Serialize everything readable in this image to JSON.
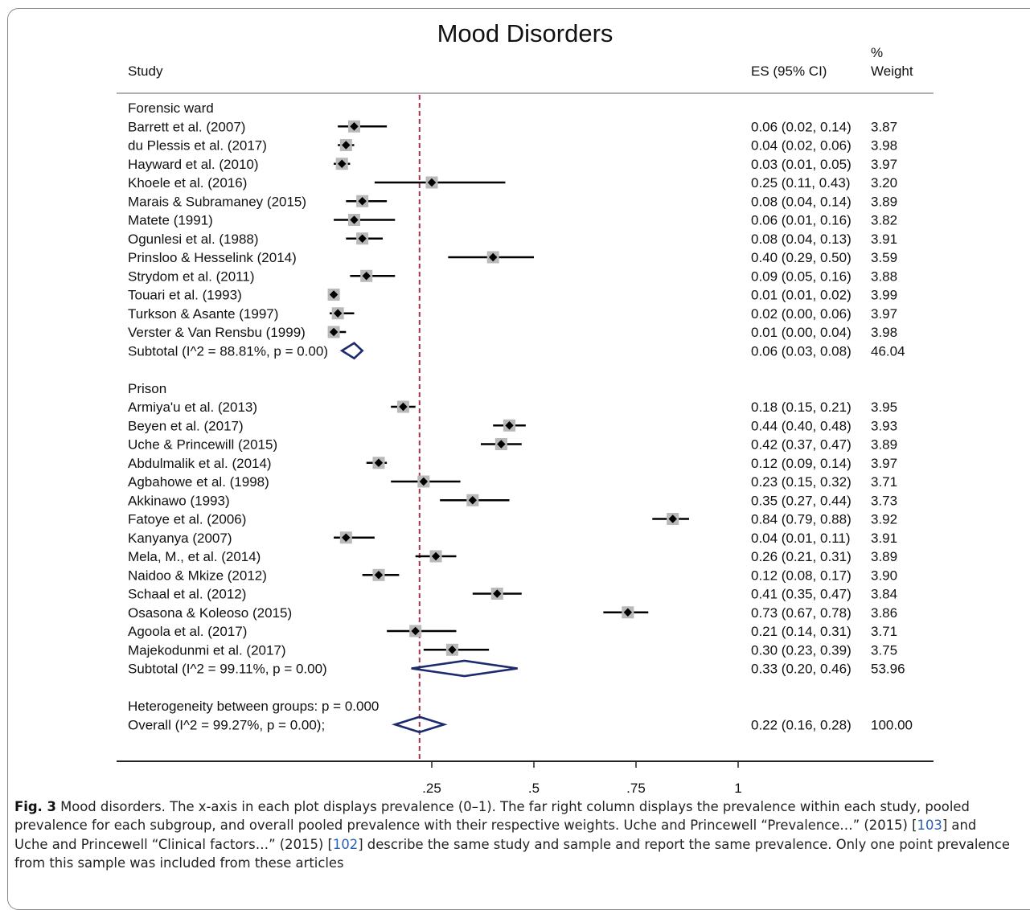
{
  "chart_data": {
    "type": "forest",
    "title": "Mood Disorders",
    "columns": {
      "study": "Study",
      "es": "ES (95% CI)",
      "weight_line1": "%",
      "weight_line2": "Weight"
    },
    "xlim": [
      0,
      1
    ],
    "reference_line": 0.22,
    "xticks": [
      {
        "value": 0.25,
        "label": ".25"
      },
      {
        "value": 0.5,
        "label": ".5"
      },
      {
        "value": 0.75,
        "label": ".75"
      },
      {
        "value": 1,
        "label": "1"
      }
    ],
    "rows": [
      {
        "kind": "header",
        "label": "Forensic ward"
      },
      {
        "kind": "study",
        "label": "Barrett et al.  (2007)",
        "es": 0.06,
        "lo": 0.02,
        "hi": 0.14,
        "es_text": "0.06 (0.02, 0.14)",
        "weight": "3.87"
      },
      {
        "kind": "study",
        "label": "du Plessis et al.  (2017)",
        "es": 0.04,
        "lo": 0.02,
        "hi": 0.06,
        "es_text": "0.04 (0.02, 0.06)",
        "weight": "3.98"
      },
      {
        "kind": "study",
        "label": "Hayward et al.  (2010)",
        "es": 0.03,
        "lo": 0.01,
        "hi": 0.05,
        "es_text": "0.03 (0.01, 0.05)",
        "weight": "3.97"
      },
      {
        "kind": "study",
        "label": "Khoele et al.  (2016)",
        "es": 0.25,
        "lo": 0.11,
        "hi": 0.43,
        "es_text": "0.25 (0.11, 0.43)",
        "weight": "3.20"
      },
      {
        "kind": "study",
        "label": "Marais & Subramaney  (2015)",
        "es": 0.08,
        "lo": 0.04,
        "hi": 0.14,
        "es_text": "0.08 (0.04, 0.14)",
        "weight": "3.89"
      },
      {
        "kind": "study",
        "label": "Matete  (1991)",
        "es": 0.06,
        "lo": 0.01,
        "hi": 0.16,
        "es_text": "0.06 (0.01, 0.16)",
        "weight": "3.82"
      },
      {
        "kind": "study",
        "label": "Ogunlesi et al.  (1988)",
        "es": 0.08,
        "lo": 0.04,
        "hi": 0.13,
        "es_text": "0.08 (0.04, 0.13)",
        "weight": "3.91"
      },
      {
        "kind": "study",
        "label": "Prinsloo & Hesselink  (2014)",
        "es": 0.4,
        "lo": 0.29,
        "hi": 0.5,
        "es_text": "0.40 (0.29, 0.50)",
        "weight": "3.59"
      },
      {
        "kind": "study",
        "label": "Strydom et al.  (2011)",
        "es": 0.09,
        "lo": 0.05,
        "hi": 0.16,
        "es_text": "0.09 (0.05, 0.16)",
        "weight": "3.88"
      },
      {
        "kind": "study",
        "label": "Touari et al.  (1993)",
        "es": 0.01,
        "lo": 0.01,
        "hi": 0.02,
        "es_text": "0.01 (0.01, 0.02)",
        "weight": "3.99"
      },
      {
        "kind": "study",
        "label": "Turkson & Asante  (1997)",
        "es": 0.02,
        "lo": 0.0,
        "hi": 0.06,
        "es_text": "0.02 (0.00, 0.06)",
        "weight": "3.97"
      },
      {
        "kind": "study",
        "label": "Verster & Van Rensbu  (1999)",
        "es": 0.01,
        "lo": 0.0,
        "hi": 0.04,
        "es_text": "0.01 (0.00, 0.04)",
        "weight": "3.98"
      },
      {
        "kind": "subtotal",
        "label": "Subtotal  (I^2 = 88.81%, p = 0.00)",
        "es": 0.06,
        "lo": 0.03,
        "hi": 0.08,
        "es_text": "0.06 (0.03, 0.08)",
        "weight": "46.04"
      },
      {
        "kind": "blank"
      },
      {
        "kind": "header",
        "label": "Prison"
      },
      {
        "kind": "study",
        "label": "Armiya'u et al.  (2013)",
        "es": 0.18,
        "lo": 0.15,
        "hi": 0.21,
        "es_text": "0.18 (0.15, 0.21)",
        "weight": "3.95"
      },
      {
        "kind": "study",
        "label": "Beyen et al.  (2017)",
        "es": 0.44,
        "lo": 0.4,
        "hi": 0.48,
        "es_text": "0.44 (0.40, 0.48)",
        "weight": "3.93"
      },
      {
        "kind": "study",
        "label": "Uche & Princewill  (2015)",
        "es": 0.42,
        "lo": 0.37,
        "hi": 0.47,
        "es_text": "0.42 (0.37, 0.47)",
        "weight": "3.89"
      },
      {
        "kind": "study",
        "label": "Abdulmalik et al.  (2014)",
        "es": 0.12,
        "lo": 0.09,
        "hi": 0.14,
        "es_text": "0.12 (0.09, 0.14)",
        "weight": "3.97"
      },
      {
        "kind": "study",
        "label": "Agbahowe et al.  (1998)",
        "es": 0.23,
        "lo": 0.15,
        "hi": 0.32,
        "es_text": "0.23 (0.15, 0.32)",
        "weight": "3.71"
      },
      {
        "kind": "study",
        "label": "Akkinawo  (1993)",
        "es": 0.35,
        "lo": 0.27,
        "hi": 0.44,
        "es_text": "0.35 (0.27, 0.44)",
        "weight": "3.73"
      },
      {
        "kind": "study",
        "label": "Fatoye et al.  (2006)",
        "es": 0.84,
        "lo": 0.79,
        "hi": 0.88,
        "es_text": "0.84 (0.79, 0.88)",
        "weight": "3.92"
      },
      {
        "kind": "study",
        "label": "Kanyanya  (2007)",
        "es": 0.04,
        "lo": 0.01,
        "hi": 0.11,
        "es_text": "0.04 (0.01, 0.11)",
        "weight": "3.91"
      },
      {
        "kind": "study",
        "label": "Mela, M., et al.  (2014)",
        "es": 0.26,
        "lo": 0.21,
        "hi": 0.31,
        "es_text": "0.26 (0.21, 0.31)",
        "weight": "3.89"
      },
      {
        "kind": "study",
        "label": "Naidoo & Mkize  (2012)",
        "es": 0.12,
        "lo": 0.08,
        "hi": 0.17,
        "es_text": "0.12 (0.08, 0.17)",
        "weight": "3.90"
      },
      {
        "kind": "study",
        "label": "Schaal et al.  (2012)",
        "es": 0.41,
        "lo": 0.35,
        "hi": 0.47,
        "es_text": "0.41 (0.35, 0.47)",
        "weight": "3.84"
      },
      {
        "kind": "study",
        "label": "Osasona & Koleoso  (2015)",
        "es": 0.73,
        "lo": 0.67,
        "hi": 0.78,
        "es_text": "0.73 (0.67, 0.78)",
        "weight": "3.86"
      },
      {
        "kind": "study",
        "label": "Agoola et al.  (2017)",
        "es": 0.21,
        "lo": 0.14,
        "hi": 0.31,
        "es_text": "0.21 (0.14, 0.31)",
        "weight": "3.71"
      },
      {
        "kind": "study",
        "label": "Majekodunmi et al.  (2017)",
        "es": 0.3,
        "lo": 0.23,
        "hi": 0.39,
        "es_text": "0.30 (0.23, 0.39)",
        "weight": "3.75"
      },
      {
        "kind": "subtotal",
        "label": "Subtotal  (I^2 = 99.11%, p = 0.00)",
        "es": 0.33,
        "lo": 0.2,
        "hi": 0.46,
        "es_text": "0.33 (0.20, 0.46)",
        "weight": "53.96"
      },
      {
        "kind": "blank"
      },
      {
        "kind": "header",
        "label": "Heterogeneity between groups: p = 0.000"
      },
      {
        "kind": "subtotal",
        "label": "Overall  (I^2 = 99.27%, p = 0.00);",
        "es": 0.22,
        "lo": 0.16,
        "hi": 0.28,
        "es_text": "0.22 (0.16, 0.28)",
        "weight": "100.00"
      }
    ],
    "colors": {
      "diamond": "#1c2a6e",
      "reference": "#a8324a",
      "weight_box": "#b9b9b9",
      "point": "#000000"
    }
  },
  "caption": {
    "label": "Fig. 3",
    "text_before_ref1": "  Mood disorders. The x-axis in each plot displays prevalence (0–1). The far right column displays the prevalence within each study, pooled prevalence for each subgroup, and overall pooled prevalence with their respective weights. Uche and Princewell “Prevalence…” (2015) [",
    "ref1": "103",
    "text_between": "] and Uche and Princewell “Clinical factors…” (2015) [",
    "ref2": "102",
    "text_after": "] describe the same study and sample and report the same prevalence. Only one point prevalence from this sample was included from these articles"
  }
}
